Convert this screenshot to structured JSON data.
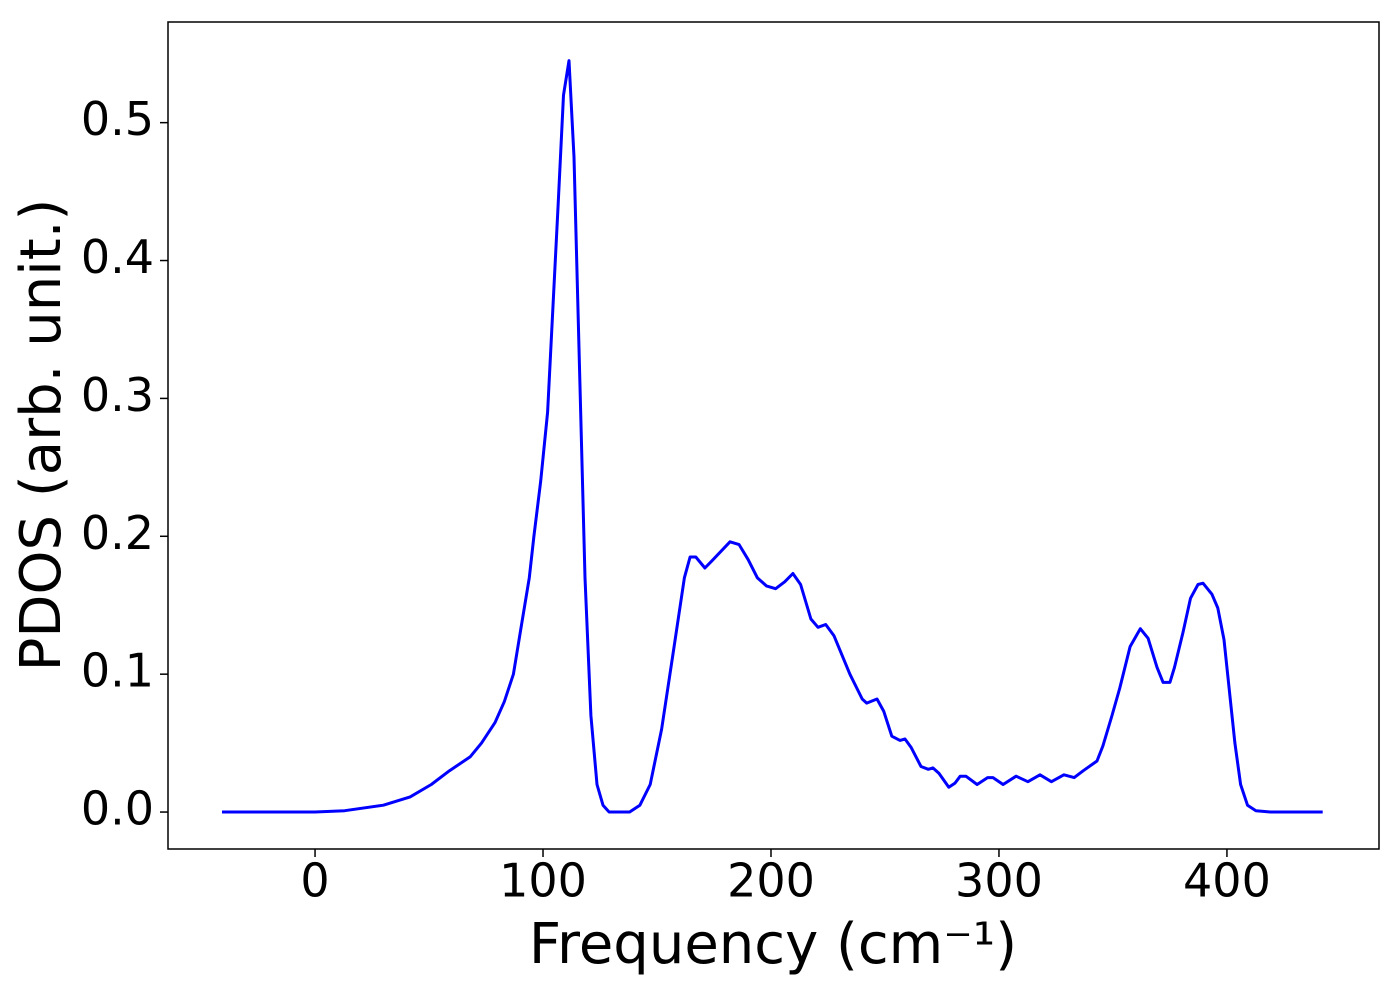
{
  "chart_data": {
    "type": "line",
    "xlabel": "Frequency (cm⁻¹)",
    "ylabel": "PDOS (arb. unit.)",
    "xlim": [
      -64.5,
      466.7
    ],
    "ylim": [
      -0.0268,
      0.573
    ],
    "xticks": [
      0,
      100,
      200,
      300,
      400
    ],
    "yticks": [
      0.0,
      0.1,
      0.2,
      0.3,
      0.4,
      0.5
    ],
    "series": [
      {
        "color": "#0000ff",
        "x": [
          -40.8,
          0,
          13,
          30,
          41.7,
          51,
          59,
          68,
          73,
          79,
          83,
          87,
          90,
          94,
          96,
          99,
          102,
          106.6,
          109,
          111.4,
          113.6,
          118.4,
          121,
          123.7,
          126.3,
          129,
          138,
          142.5,
          147,
          152,
          157.5,
          162,
          164.5,
          167,
          171,
          174,
          182,
          186,
          190,
          194,
          198,
          202,
          206,
          209.6,
          213,
          217.5,
          220.6,
          224,
          227.6,
          234.6,
          240,
          242,
          246.5,
          249.5,
          253,
          256.6,
          258.8,
          261.4,
          265.8,
          269,
          271,
          273.7,
          278,
          280.7,
          283,
          285.5,
          290.4,
          295,
          297.4,
          301.8,
          307.5,
          312.7,
          318,
          323,
          328.5,
          333,
          337,
          343,
          345.6,
          349.6,
          353,
          357.5,
          362,
          365.4,
          369.3,
          372,
          375,
          377,
          380.7,
          384,
          387.3,
          389.5,
          393.4,
          396,
          398.7,
          403.5,
          406,
          409,
          412.7,
          419,
          442
        ],
        "values": [
          0,
          0,
          0.001,
          0.005,
          0.011,
          0.02,
          0.03,
          0.04,
          0.05,
          0.065,
          0.08,
          0.1,
          0.13,
          0.17,
          0.2,
          0.24,
          0.29,
          0.44,
          0.52,
          0.545,
          0.475,
          0.17,
          0.07,
          0.02,
          0.005,
          0,
          0,
          0.005,
          0.02,
          0.06,
          0.12,
          0.17,
          0.185,
          0.185,
          0.177,
          0.182,
          0.196,
          0.194,
          0.183,
          0.17,
          0.164,
          0.162,
          0.167,
          0.173,
          0.165,
          0.14,
          0.134,
          0.136,
          0.128,
          0.1,
          0.082,
          0.079,
          0.082,
          0.073,
          0.055,
          0.052,
          0.053,
          0.047,
          0.033,
          0.031,
          0.032,
          0.028,
          0.018,
          0.021,
          0.026,
          0.026,
          0.02,
          0.025,
          0.025,
          0.02,
          0.026,
          0.022,
          0.027,
          0.022,
          0.027,
          0.025,
          0.03,
          0.037,
          0.048,
          0.07,
          0.09,
          0.12,
          0.133,
          0.126,
          0.105,
          0.094,
          0.094,
          0.105,
          0.13,
          0.155,
          0.165,
          0.166,
          0.158,
          0.148,
          0.125,
          0.05,
          0.02,
          0.005,
          0.001,
          0,
          0
        ]
      }
    ]
  }
}
